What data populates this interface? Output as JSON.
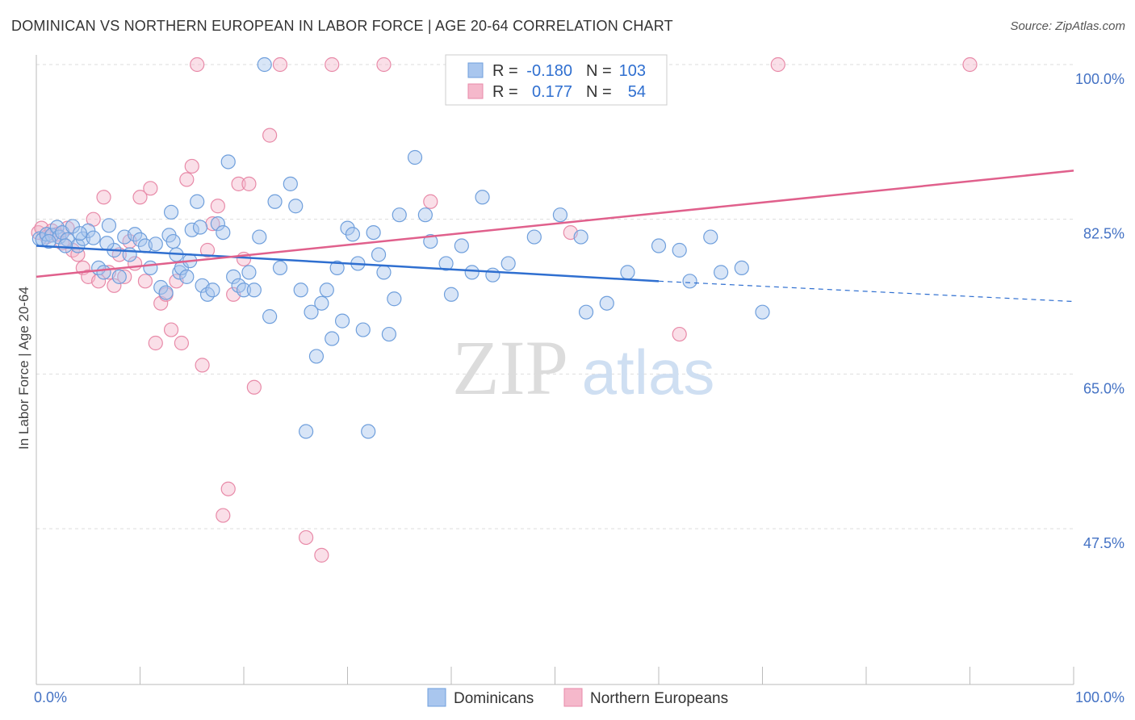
{
  "title": "DOMINICAN VS NORTHERN EUROPEAN IN LABOR FORCE | AGE 20-64 CORRELATION CHART",
  "source": "Source: ZipAtlas.com",
  "watermark": {
    "zip": "ZIP",
    "atlas": "atlas"
  },
  "legend_top": {
    "rows": [
      {
        "r_label": "R =",
        "r_value": "-0.180",
        "n_label": "N =",
        "n_value": "103"
      },
      {
        "r_label": "R =",
        "r_value": "0.177",
        "n_label": "N =",
        "n_value": "54"
      }
    ]
  },
  "chart_data": {
    "type": "scatter",
    "ylabel": "In Labor Force | Age 20-64",
    "xlim": [
      0,
      100
    ],
    "ylim": [
      30,
      100
    ],
    "x_tick_labels": [
      "0.0%",
      "100.0%"
    ],
    "y_ticks": [
      {
        "value": 100,
        "label": "100.0%"
      },
      {
        "value": 82.5,
        "label": "82.5%"
      },
      {
        "value": 65,
        "label": "65.0%"
      },
      {
        "value": 47.5,
        "label": "47.5%"
      }
    ],
    "grid": true,
    "legend_position": "bottom-center",
    "series": [
      {
        "name": "Dominicans",
        "color": "#6f9fdc",
        "fill": "#a9c6ee",
        "trend": {
          "x0": 0,
          "y0": 79.5,
          "x1": 60,
          "y1": 75.5,
          "dash_to": 100,
          "dash_y": 73.2,
          "color": "#2f6fd0"
        },
        "points": [
          [
            0.3,
            80.3
          ],
          [
            0.6,
            80.2
          ],
          [
            1.0,
            80.8
          ],
          [
            1.5,
            80.7
          ],
          [
            2.0,
            81.6
          ],
          [
            2.2,
            80.5
          ],
          [
            2.5,
            81.0
          ],
          [
            3.0,
            80.2
          ],
          [
            3.5,
            81.7
          ],
          [
            4.0,
            79.5
          ],
          [
            4.5,
            80.3
          ],
          [
            5.0,
            81.2
          ],
          [
            5.5,
            80.4
          ],
          [
            6.0,
            77.0
          ],
          [
            6.5,
            76.5
          ],
          [
            7.0,
            81.8
          ],
          [
            7.5,
            79.0
          ],
          [
            8.0,
            76.0
          ],
          [
            8.5,
            80.5
          ],
          [
            9.0,
            78.5
          ],
          [
            9.5,
            80.8
          ],
          [
            10.0,
            80.2
          ],
          [
            10.5,
            79.5
          ],
          [
            11.0,
            77.0
          ],
          [
            11.5,
            79.7
          ],
          [
            12.0,
            74.8
          ],
          [
            12.5,
            74.2
          ],
          [
            12.8,
            80.7
          ],
          [
            13.0,
            83.3
          ],
          [
            13.2,
            80.0
          ],
          [
            13.5,
            78.5
          ],
          [
            13.8,
            76.5
          ],
          [
            14.0,
            77.0
          ],
          [
            14.5,
            76.0
          ],
          [
            14.8,
            77.8
          ],
          [
            15.0,
            81.3
          ],
          [
            15.5,
            84.5
          ],
          [
            15.8,
            81.6
          ],
          [
            16.0,
            75.0
          ],
          [
            16.5,
            74.0
          ],
          [
            17.0,
            74.5
          ],
          [
            17.5,
            82.0
          ],
          [
            18.0,
            81.0
          ],
          [
            18.5,
            89.0
          ],
          [
            19.0,
            76.0
          ],
          [
            19.5,
            75.0
          ],
          [
            20.0,
            74.5
          ],
          [
            20.5,
            76.5
          ],
          [
            21.0,
            74.5
          ],
          [
            21.5,
            80.5
          ],
          [
            22.0,
            100.0
          ],
          [
            22.5,
            71.5
          ],
          [
            23.0,
            84.5
          ],
          [
            23.5,
            77.0
          ],
          [
            24.5,
            86.5
          ],
          [
            25.0,
            84.0
          ],
          [
            25.5,
            74.5
          ],
          [
            26.0,
            58.5
          ],
          [
            26.5,
            72.0
          ],
          [
            27.0,
            67.0
          ],
          [
            27.5,
            73.0
          ],
          [
            28.0,
            74.5
          ],
          [
            28.5,
            69.0
          ],
          [
            29.0,
            77.0
          ],
          [
            29.5,
            71.0
          ],
          [
            30.0,
            81.5
          ],
          [
            30.5,
            80.8
          ],
          [
            31.0,
            77.5
          ],
          [
            31.5,
            70.0
          ],
          [
            32.0,
            58.5
          ],
          [
            32.5,
            81.0
          ],
          [
            33.0,
            78.5
          ],
          [
            33.5,
            76.5
          ],
          [
            34.0,
            69.5
          ],
          [
            34.5,
            73.5
          ],
          [
            35.0,
            83.0
          ],
          [
            36.5,
            89.5
          ],
          [
            37.5,
            83.0
          ],
          [
            38.0,
            80.0
          ],
          [
            39.5,
            77.5
          ],
          [
            40.0,
            74.0
          ],
          [
            41.0,
            79.5
          ],
          [
            42.0,
            76.5
          ],
          [
            43.0,
            85.0
          ],
          [
            44.0,
            76.2
          ],
          [
            45.5,
            77.5
          ],
          [
            48.0,
            80.5
          ],
          [
            50.5,
            83.0
          ],
          [
            52.5,
            80.5
          ],
          [
            53.0,
            72.0
          ],
          [
            55.0,
            73.0
          ],
          [
            57.0,
            76.5
          ],
          [
            60.0,
            79.5
          ],
          [
            62.0,
            79.0
          ],
          [
            63.0,
            75.5
          ],
          [
            65.0,
            80.5
          ],
          [
            66.0,
            76.5
          ],
          [
            68.0,
            77.0
          ],
          [
            70.0,
            72.0
          ],
          [
            1.2,
            80.0
          ],
          [
            2.8,
            79.5
          ],
          [
            4.2,
            80.9
          ],
          [
            6.8,
            79.8
          ]
        ]
      },
      {
        "name": "Northern Europeans",
        "color": "#e88aa8",
        "fill": "#f5b8cb",
        "trend": {
          "x0": 0,
          "y0": 76.0,
          "x1": 100,
          "y1": 88.0,
          "color": "#e0608c"
        },
        "points": [
          [
            0.2,
            81.0
          ],
          [
            0.5,
            81.5
          ],
          [
            1.0,
            80.5
          ],
          [
            1.5,
            81.2
          ],
          [
            2.0,
            80.8
          ],
          [
            2.5,
            79.8
          ],
          [
            3.0,
            81.5
          ],
          [
            3.5,
            79.0
          ],
          [
            4.0,
            78.5
          ],
          [
            4.5,
            77.0
          ],
          [
            5.0,
            76.0
          ],
          [
            5.5,
            82.5
          ],
          [
            6.0,
            75.5
          ],
          [
            6.5,
            85.0
          ],
          [
            7.0,
            76.5
          ],
          [
            7.5,
            75.0
          ],
          [
            8.0,
            78.5
          ],
          [
            8.5,
            76.0
          ],
          [
            9.0,
            80.0
          ],
          [
            9.5,
            77.5
          ],
          [
            10.0,
            85.0
          ],
          [
            10.5,
            75.5
          ],
          [
            11.0,
            86.0
          ],
          [
            11.5,
            68.5
          ],
          [
            12.0,
            73.0
          ],
          [
            12.5,
            74.0
          ],
          [
            13.0,
            70.0
          ],
          [
            13.5,
            75.5
          ],
          [
            14.0,
            68.5
          ],
          [
            14.5,
            87.0
          ],
          [
            15.0,
            88.5
          ],
          [
            15.5,
            100.0
          ],
          [
            16.0,
            66.0
          ],
          [
            16.5,
            79.0
          ],
          [
            17.0,
            82.0
          ],
          [
            17.5,
            84.0
          ],
          [
            18.0,
            49.0
          ],
          [
            18.5,
            52.0
          ],
          [
            19.0,
            74.0
          ],
          [
            19.5,
            86.5
          ],
          [
            20.0,
            78.0
          ],
          [
            20.5,
            86.5
          ],
          [
            21.0,
            63.5
          ],
          [
            22.5,
            92.0
          ],
          [
            23.5,
            100.0
          ],
          [
            26.0,
            46.5
          ],
          [
            27.5,
            44.5
          ],
          [
            28.5,
            100.0
          ],
          [
            33.5,
            100.0
          ],
          [
            38.0,
            84.5
          ],
          [
            51.5,
            81.0
          ],
          [
            62.0,
            69.5
          ],
          [
            71.5,
            100.0
          ],
          [
            90.0,
            100.0
          ]
        ]
      }
    ]
  }
}
